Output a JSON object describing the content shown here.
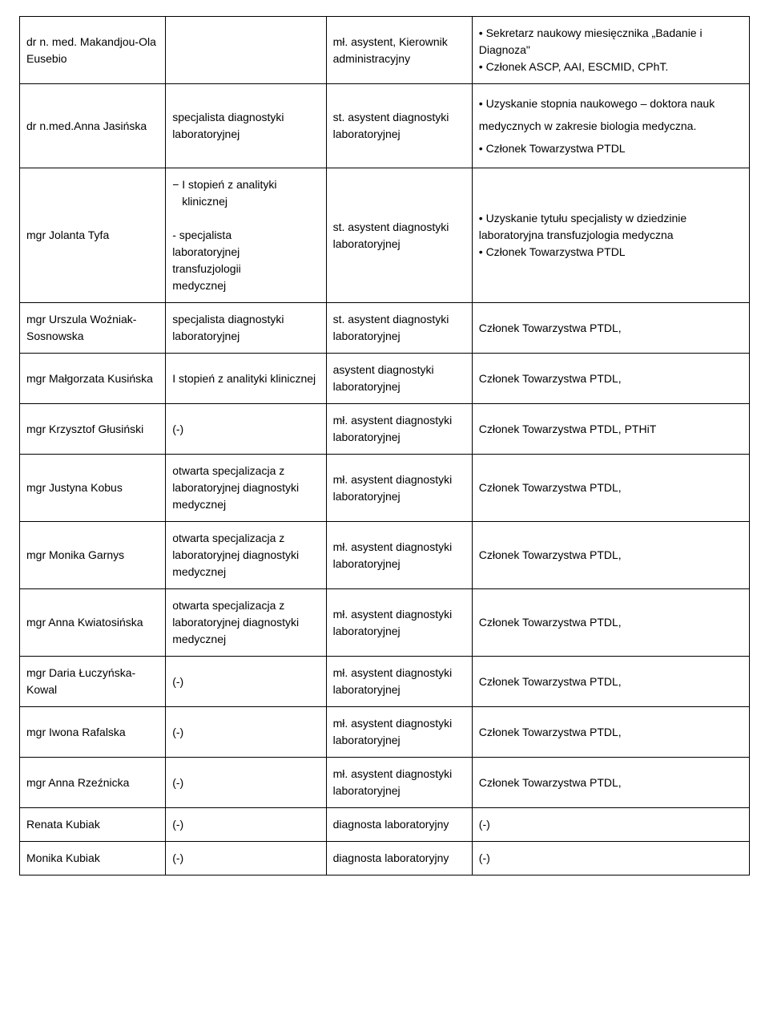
{
  "table": {
    "rows": [
      {
        "c1": "dr n. med. Makandjou-Ola Eusebio",
        "c2": "",
        "c3": "mł. asystent, Kierownik administracyjny",
        "c4": " • Sekretarz naukowy miesięcznika „Badanie i Diagnoza\"\n• Członek ASCP, AAI, ESCMID, CPhT."
      },
      {
        "c1": "dr n.med.Anna Jasińska",
        "c2": "specjalista diagnostyki laboratoryjnej",
        "c3": "st. asystent diagnostyki laboratoryjnej",
        "c4": "• Uzyskanie stopnia naukowego – doktora nauk medycznych w zakresie biologia medyczna.\n• Członek Towarzystwa PTDL",
        "c4loose": true
      },
      {
        "c1": "mgr Jolanta Tyfa",
        "c2_lines": [
          "− I stopień z analityki",
          "klinicznej",
          "",
          "- specjalista",
          "laboratoryjnej",
          "transfuzjologii",
          "medycznej"
        ],
        "c3": "st. asystent diagnostyki laboratoryjnej",
        "c4": "• Uzyskanie tytułu specjalisty w dziedzinie laboratoryjna transfuzjologia medyczna\n• Członek Towarzystwa PTDL"
      },
      {
        "c1": "mgr Urszula Woźniak-Sosnowska",
        "c2": "specjalista diagnostyki laboratoryjnej",
        "c3": "st. asystent diagnostyki laboratoryjnej",
        "c4": "Członek Towarzystwa PTDL,"
      },
      {
        "c1": "mgr Małgorzata Kusińska",
        "c2": "I stopień z analityki klinicznej",
        "c3": "asystent diagnostyki laboratoryjnej",
        "c4": "Członek Towarzystwa PTDL,"
      },
      {
        "c1": "mgr Krzysztof Głusiński",
        "c2": "(-)",
        "c3": "mł. asystent diagnostyki laboratoryjnej",
        "c4": "Członek Towarzystwa PTDL, PTHiT"
      },
      {
        "c1": "mgr Justyna Kobus",
        "c2": "otwarta specjalizacja z laboratoryjnej diagnostyki medycznej",
        "c3": "mł. asystent diagnostyki laboratoryjnej",
        "c4": "Członek Towarzystwa PTDL,"
      },
      {
        "c1": "mgr Monika Garnys",
        "c2": "otwarta specjalizacja z laboratoryjnej diagnostyki medycznej",
        "c3": "mł. asystent diagnostyki laboratoryjnej",
        "c4": "Członek Towarzystwa PTDL,"
      },
      {
        "c1": "mgr Anna Kwiatosińska",
        "c2": "otwarta specjalizacja z laboratoryjnej diagnostyki medycznej",
        "c3": "mł. asystent diagnostyki laboratoryjnej",
        "c4": "Członek Towarzystwa PTDL,"
      },
      {
        "c1": "mgr Daria Łuczyńska-Kowal",
        "c2": "(-)",
        "c3": "mł. asystent diagnostyki laboratoryjnej",
        "c4": "Członek Towarzystwa PTDL,"
      },
      {
        "c1": "mgr Iwona Rafalska",
        "c2": "(-)",
        "c3": "mł. asystent diagnostyki laboratoryjnej",
        "c4": "Członek Towarzystwa PTDL,"
      },
      {
        "c1": "mgr Anna Rzeźnicka",
        "c2": "(-)",
        "c3": "mł. asystent diagnostyki laboratoryjnej",
        "c4": "Członek Towarzystwa PTDL,"
      },
      {
        "c1": "Renata Kubiak",
        "c2": "(-)",
        "c3": "diagnosta laboratoryjny",
        "c4": "(-)"
      },
      {
        "c1": "Monika Kubiak",
        "c2": "(-)",
        "c3": "diagnosta laboratoryjny",
        "c4": "(-)"
      }
    ]
  }
}
